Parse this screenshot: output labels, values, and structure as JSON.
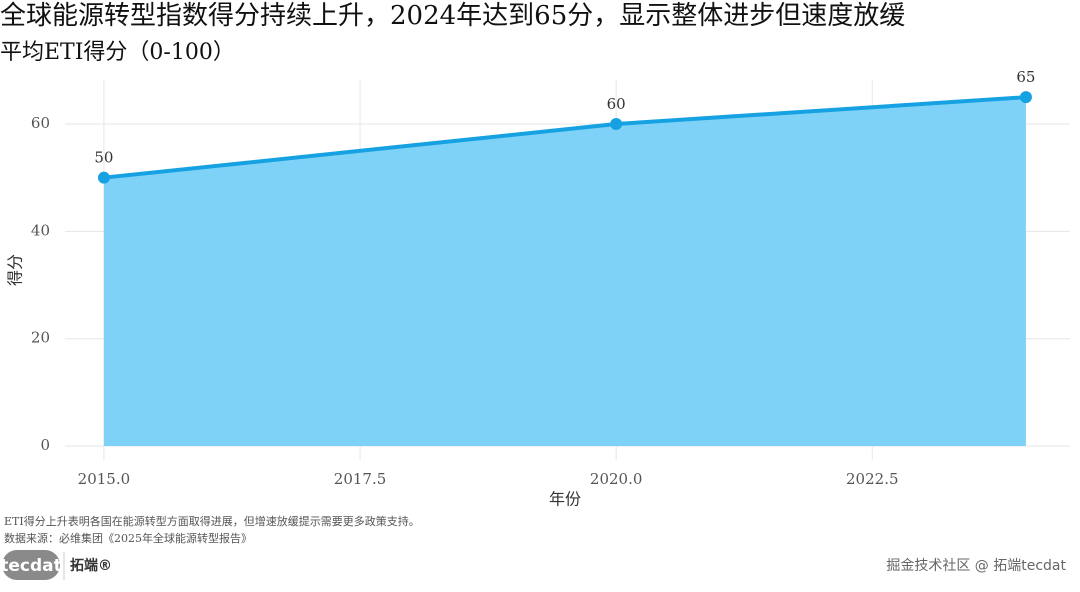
{
  "chart_data": {
    "type": "area",
    "title": "全球能源转型指数得分持续上升，2024年达到65分，显示整体进步但速度放缓",
    "subtitle": "平均ETI得分（0-100）",
    "x": [
      2015,
      2020,
      2024
    ],
    "values": [
      50,
      60,
      65
    ],
    "color": "#16a2e2",
    "fill_color": "#7fd2f7",
    "xlabel": "年份",
    "ylabel": "得分",
    "xlim": [
      2014.62,
      2024.43
    ],
    "ylim": [
      -2.6,
      68.2
    ],
    "xticks": [
      {
        "value": 2015,
        "label": "2015.0"
      },
      2017.5,
      {
        "value": 2020,
        "label": "2020.0"
      },
      2022.5
    ],
    "yticks": [
      0,
      20,
      40,
      60
    ],
    "grid": true,
    "show_points": true,
    "show_value_labels": true,
    "caption": "ETI得分上升表明各国在能源转型方面取得进展，但增速放缓提示需要更多政策支持。",
    "source": "数据来源：必维集团《2025年全球能源转型报告》"
  },
  "footer": {
    "logo": "tecdat",
    "brand": "拓端®",
    "watermark": "掘金技术社区 @ 拓端tecdat"
  }
}
